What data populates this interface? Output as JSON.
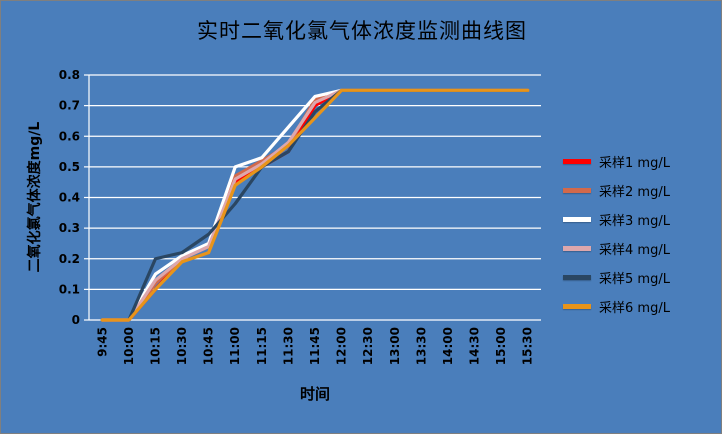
{
  "chart": {
    "title": "实时二氧化氯气体浓度监测曲线图",
    "x_axis_title": "时间",
    "y_axis_title": "二氧化氯气体浓度mg/L"
  },
  "chart_data": {
    "type": "line",
    "title": "实时二氧化氯气体浓度监测曲线图",
    "xlabel": "时间",
    "ylabel": "二氧化氯气体浓度mg/L",
    "ylim": [
      0,
      0.8
    ],
    "ytick_step": 0.1,
    "grid": true,
    "legend_position": "right",
    "background_color": "#4A7EBB",
    "gridline_color": "#FFFFFF",
    "categories": [
      "9:45",
      "10:00",
      "10:15",
      "10:30",
      "10:45",
      "11:00",
      "11:15",
      "11:30",
      "11:45",
      "12:00",
      "12:30",
      "13:00",
      "13:30",
      "14:00",
      "14:30",
      "15:00",
      "15:30"
    ],
    "series": [
      {
        "name": "采样1 mg/L",
        "color": "#FF0000",
        "values": [
          0,
          0,
          0.1,
          0.2,
          0.25,
          0.45,
          0.5,
          0.55,
          0.7,
          0.75,
          0.75,
          0.75,
          0.75,
          0.75,
          0.75,
          0.75,
          0.75
        ]
      },
      {
        "name": "采样2 mg/L",
        "color": "#D2694B",
        "values": [
          0,
          0,
          0.12,
          0.2,
          0.24,
          0.47,
          0.52,
          0.57,
          0.72,
          0.75,
          0.75,
          0.75,
          0.75,
          0.75,
          0.75,
          0.75,
          0.75
        ]
      },
      {
        "name": "采样3 mg/L",
        "color": "#FFFFFF",
        "values": [
          0,
          0,
          0.15,
          0.21,
          0.25,
          0.5,
          0.53,
          0.63,
          0.73,
          0.75,
          0.75,
          0.75,
          0.75,
          0.75,
          0.75,
          0.75,
          0.75
        ]
      },
      {
        "name": "采样4 mg/L",
        "color": "#DDA7AC",
        "values": [
          0,
          0,
          0.13,
          0.2,
          0.24,
          0.46,
          0.51,
          0.58,
          0.71,
          0.75,
          0.75,
          0.75,
          0.75,
          0.75,
          0.75,
          0.75,
          0.75
        ]
      },
      {
        "name": "采样5 mg/L",
        "color": "#2A4662",
        "values": [
          0,
          0,
          0.2,
          0.22,
          0.28,
          0.38,
          0.5,
          0.55,
          0.68,
          0.75,
          0.75,
          0.75,
          0.75,
          0.75,
          0.75,
          0.75,
          0.75
        ]
      },
      {
        "name": "采样6 mg/L",
        "color": "#E8941A",
        "values": [
          0,
          0,
          0.1,
          0.19,
          0.22,
          0.44,
          0.5,
          0.57,
          0.66,
          0.75,
          0.75,
          0.75,
          0.75,
          0.75,
          0.75,
          0.75,
          0.75
        ]
      }
    ]
  }
}
